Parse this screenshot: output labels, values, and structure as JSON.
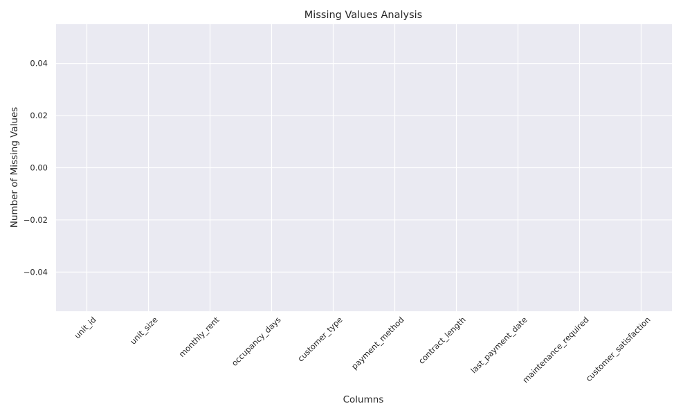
{
  "chart_data": {
    "type": "bar",
    "title": "Missing Values Analysis",
    "xlabel": "Columns",
    "ylabel": "Number of Missing Values",
    "categories": [
      "unit_id",
      "unit_size",
      "monthly_rent",
      "occupancy_days",
      "customer_type",
      "payment_method",
      "contract_length",
      "last_payment_date",
      "maintenance_required",
      "customer_satisfaction"
    ],
    "values": [
      0,
      0,
      0,
      0,
      0,
      0,
      0,
      0,
      0,
      0
    ],
    "ylim": [
      -0.055,
      0.055
    ],
    "yticks": [
      -0.04,
      -0.02,
      0.0,
      0.02,
      0.04
    ],
    "ytick_labels": [
      "−0.04",
      "−0.02",
      "0.00",
      "0.02",
      "0.04"
    ],
    "grid": true,
    "style": {
      "plot_background": "#eaeaf2",
      "grid_color": "#ffffff",
      "bar_color": "#4c72b0",
      "text_color": "#262626"
    }
  }
}
